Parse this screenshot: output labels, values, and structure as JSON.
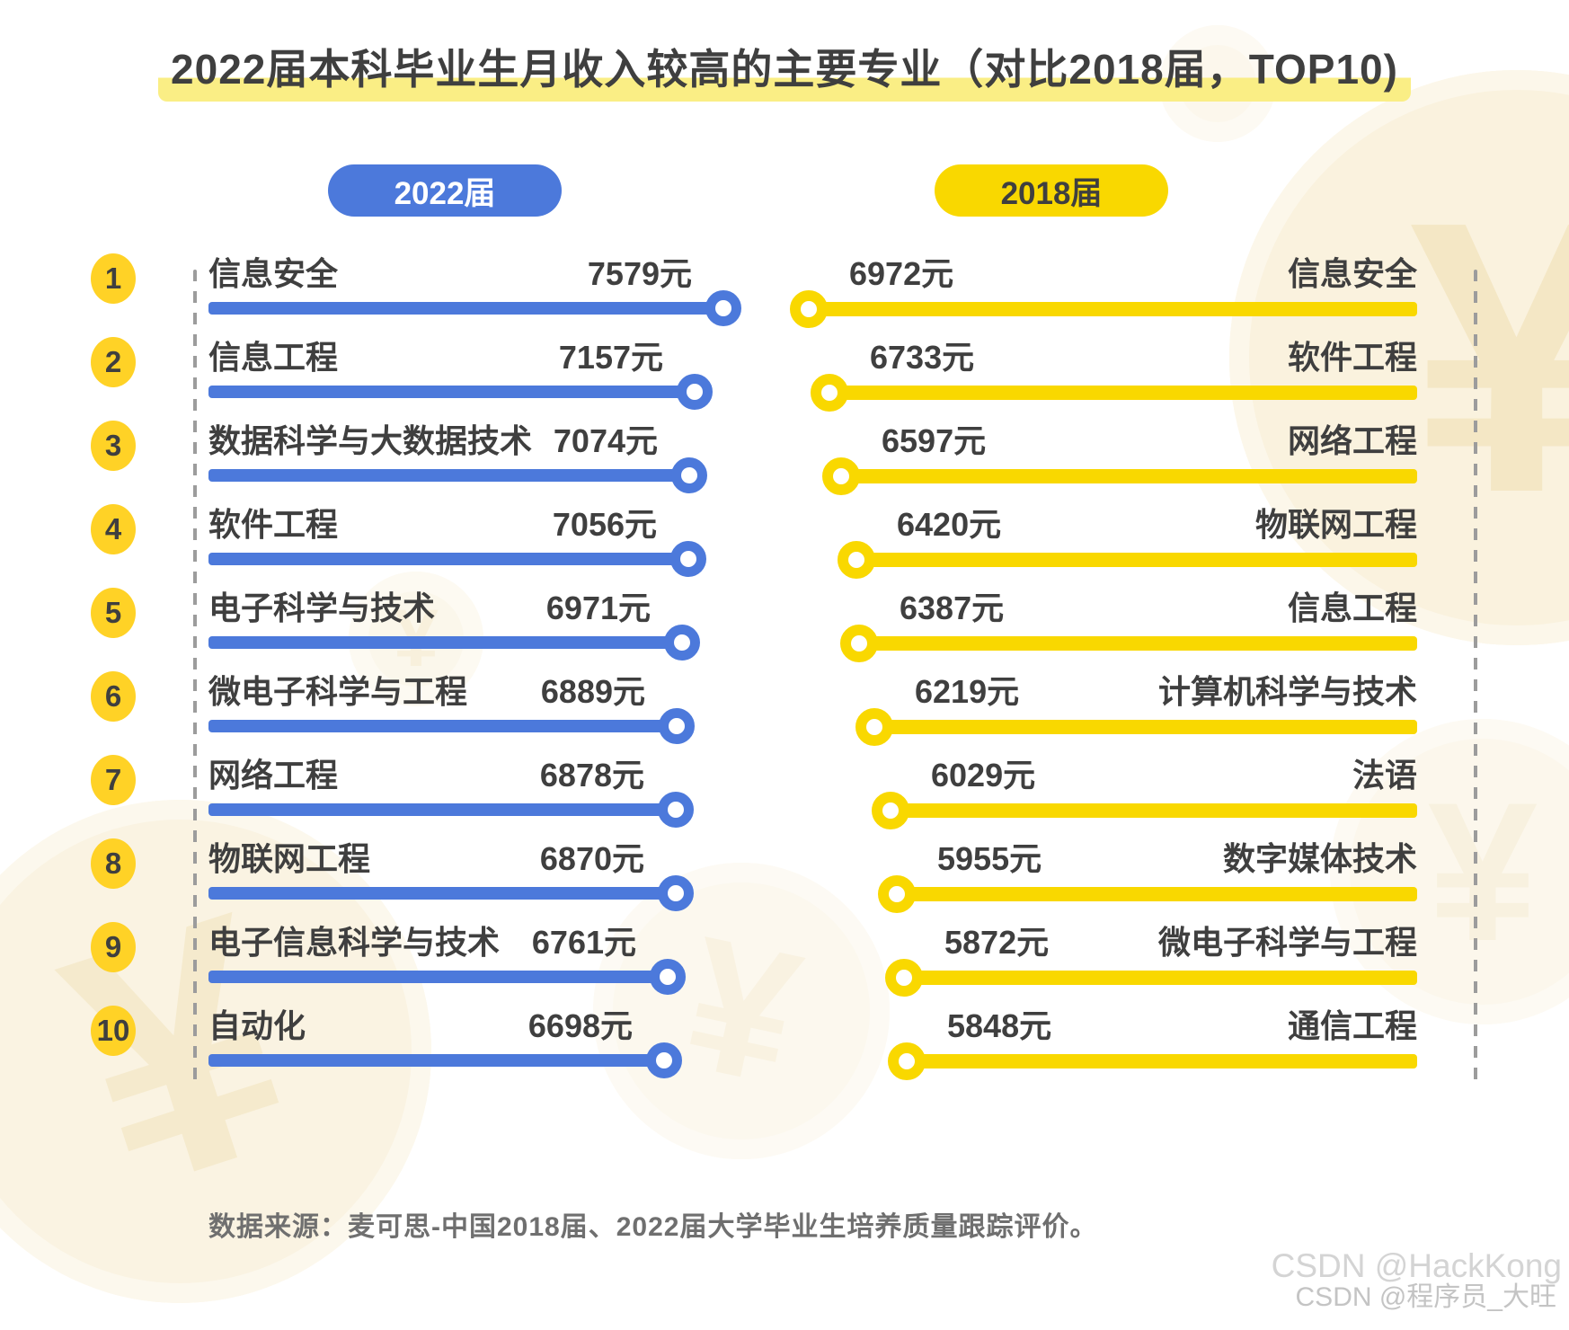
{
  "title": "2022届本科毕业生月收入较高的主要专业（对比2018届，TOP10)",
  "legend": {
    "left": "2022届",
    "right": "2018届"
  },
  "source_note": "数据来源：麦可思-中国2018届、2022届大学毕业生培养质量跟踪评价。",
  "watermarks": {
    "primary": "CSDN @HackKong",
    "secondary": "CSDN @程序员_大旺"
  },
  "colors": {
    "blue": "#4C79DB",
    "yellow": "#F9D800",
    "rank_yellow": "#FFD226",
    "highlight": "#FAEE85",
    "text_dark": "#3F3F3F"
  },
  "chart_data": {
    "type": "bar",
    "orientation": "horizontal",
    "value_suffix": "元",
    "legend_position": "top",
    "series": [
      {
        "name": "2022届",
        "color": "#4C79DB",
        "items": [
          {
            "rank": 1,
            "major": "信息安全",
            "value": 7579
          },
          {
            "rank": 2,
            "major": "信息工程",
            "value": 7157
          },
          {
            "rank": 3,
            "major": "数据科学与大数据技术",
            "value": 7074
          },
          {
            "rank": 4,
            "major": "软件工程",
            "value": 7056
          },
          {
            "rank": 5,
            "major": "电子科学与技术",
            "value": 6971
          },
          {
            "rank": 6,
            "major": "微电子科学与工程",
            "value": 6889
          },
          {
            "rank": 7,
            "major": "网络工程",
            "value": 6878
          },
          {
            "rank": 8,
            "major": "物联网工程",
            "value": 6870
          },
          {
            "rank": 9,
            "major": "电子信息科学与技术",
            "value": 6761
          },
          {
            "rank": 10,
            "major": "自动化",
            "value": 6698
          }
        ]
      },
      {
        "name": "2018届",
        "color": "#F9D800",
        "items": [
          {
            "rank": 1,
            "major": "信息安全",
            "value": 6972
          },
          {
            "rank": 2,
            "major": "软件工程",
            "value": 6733
          },
          {
            "rank": 3,
            "major": "网络工程",
            "value": 6597
          },
          {
            "rank": 4,
            "major": "物联网工程",
            "value": 6420
          },
          {
            "rank": 5,
            "major": "信息工程",
            "value": 6387
          },
          {
            "rank": 6,
            "major": "计算机科学与技术",
            "value": 6219
          },
          {
            "rank": 7,
            "major": "法语",
            "value": 6029
          },
          {
            "rank": 8,
            "major": "数字媒体技术",
            "value": 5955
          },
          {
            "rank": 9,
            "major": "微电子科学与工程",
            "value": 5872
          },
          {
            "rank": 10,
            "major": "通信工程",
            "value": 5848
          }
        ]
      }
    ]
  }
}
